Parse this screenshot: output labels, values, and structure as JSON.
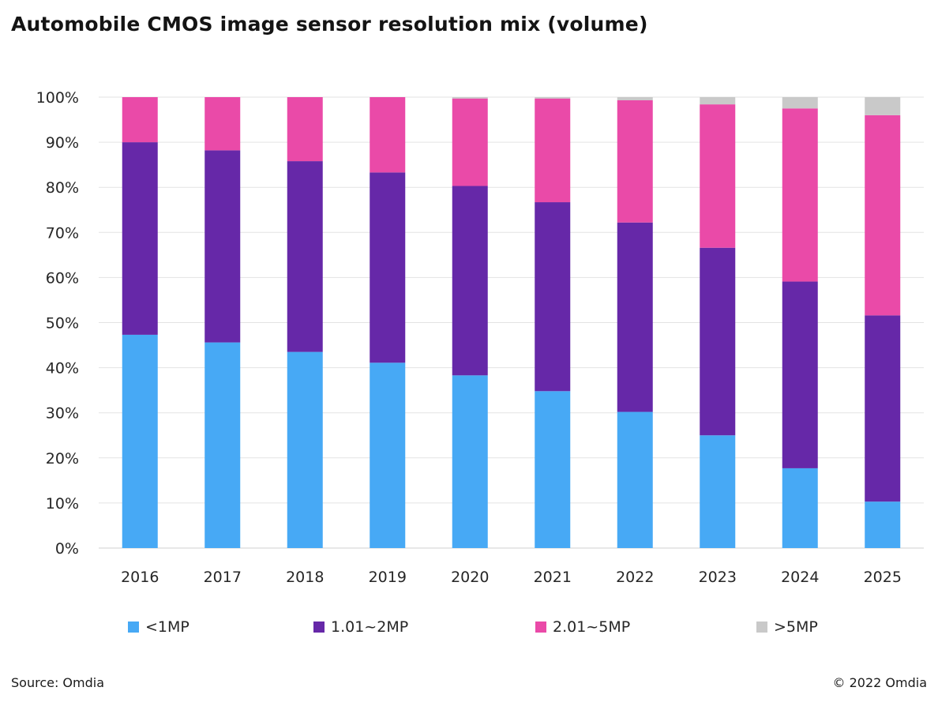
{
  "title": "Automobile CMOS image sensor resolution mix (volume)",
  "source": "Source: Omdia",
  "copyright": "© 2022 Omdia",
  "chart_data": {
    "type": "bar",
    "stacked": true,
    "title": "Automobile CMOS image sensor resolution mix (volume)",
    "xlabel": "",
    "ylabel": "",
    "ylim": [
      0,
      100
    ],
    "yticks": [
      "0%",
      "10%",
      "20%",
      "30%",
      "40%",
      "50%",
      "60%",
      "70%",
      "80%",
      "90%",
      "100%"
    ],
    "grid": true,
    "legend_position": "bottom",
    "categories": [
      "2016",
      "2017",
      "2018",
      "2019",
      "2020",
      "2021",
      "2022",
      "2023",
      "2024",
      "2025"
    ],
    "series": [
      {
        "name": "<1MP",
        "color": "#47A9F5",
        "values": [
          47.3,
          45.6,
          43.5,
          41.1,
          38.3,
          34.8,
          30.2,
          25.0,
          17.7,
          10.3
        ]
      },
      {
        "name": "1.01~2MP",
        "color": "#6628A8",
        "values": [
          42.7,
          42.6,
          42.3,
          42.2,
          42.0,
          41.9,
          42.0,
          41.6,
          41.4,
          41.3
        ]
      },
      {
        "name": "2.01~5MP",
        "color": "#EA4AA8",
        "values": [
          10.0,
          11.8,
          14.2,
          16.7,
          19.4,
          23.0,
          27.1,
          31.8,
          38.4,
          44.4
        ]
      },
      {
        "name": ">5MP",
        "color": "#C9C9C9",
        "values": [
          0.0,
          0.0,
          0.0,
          0.0,
          0.3,
          0.3,
          0.7,
          1.6,
          2.5,
          4.0
        ]
      }
    ]
  }
}
